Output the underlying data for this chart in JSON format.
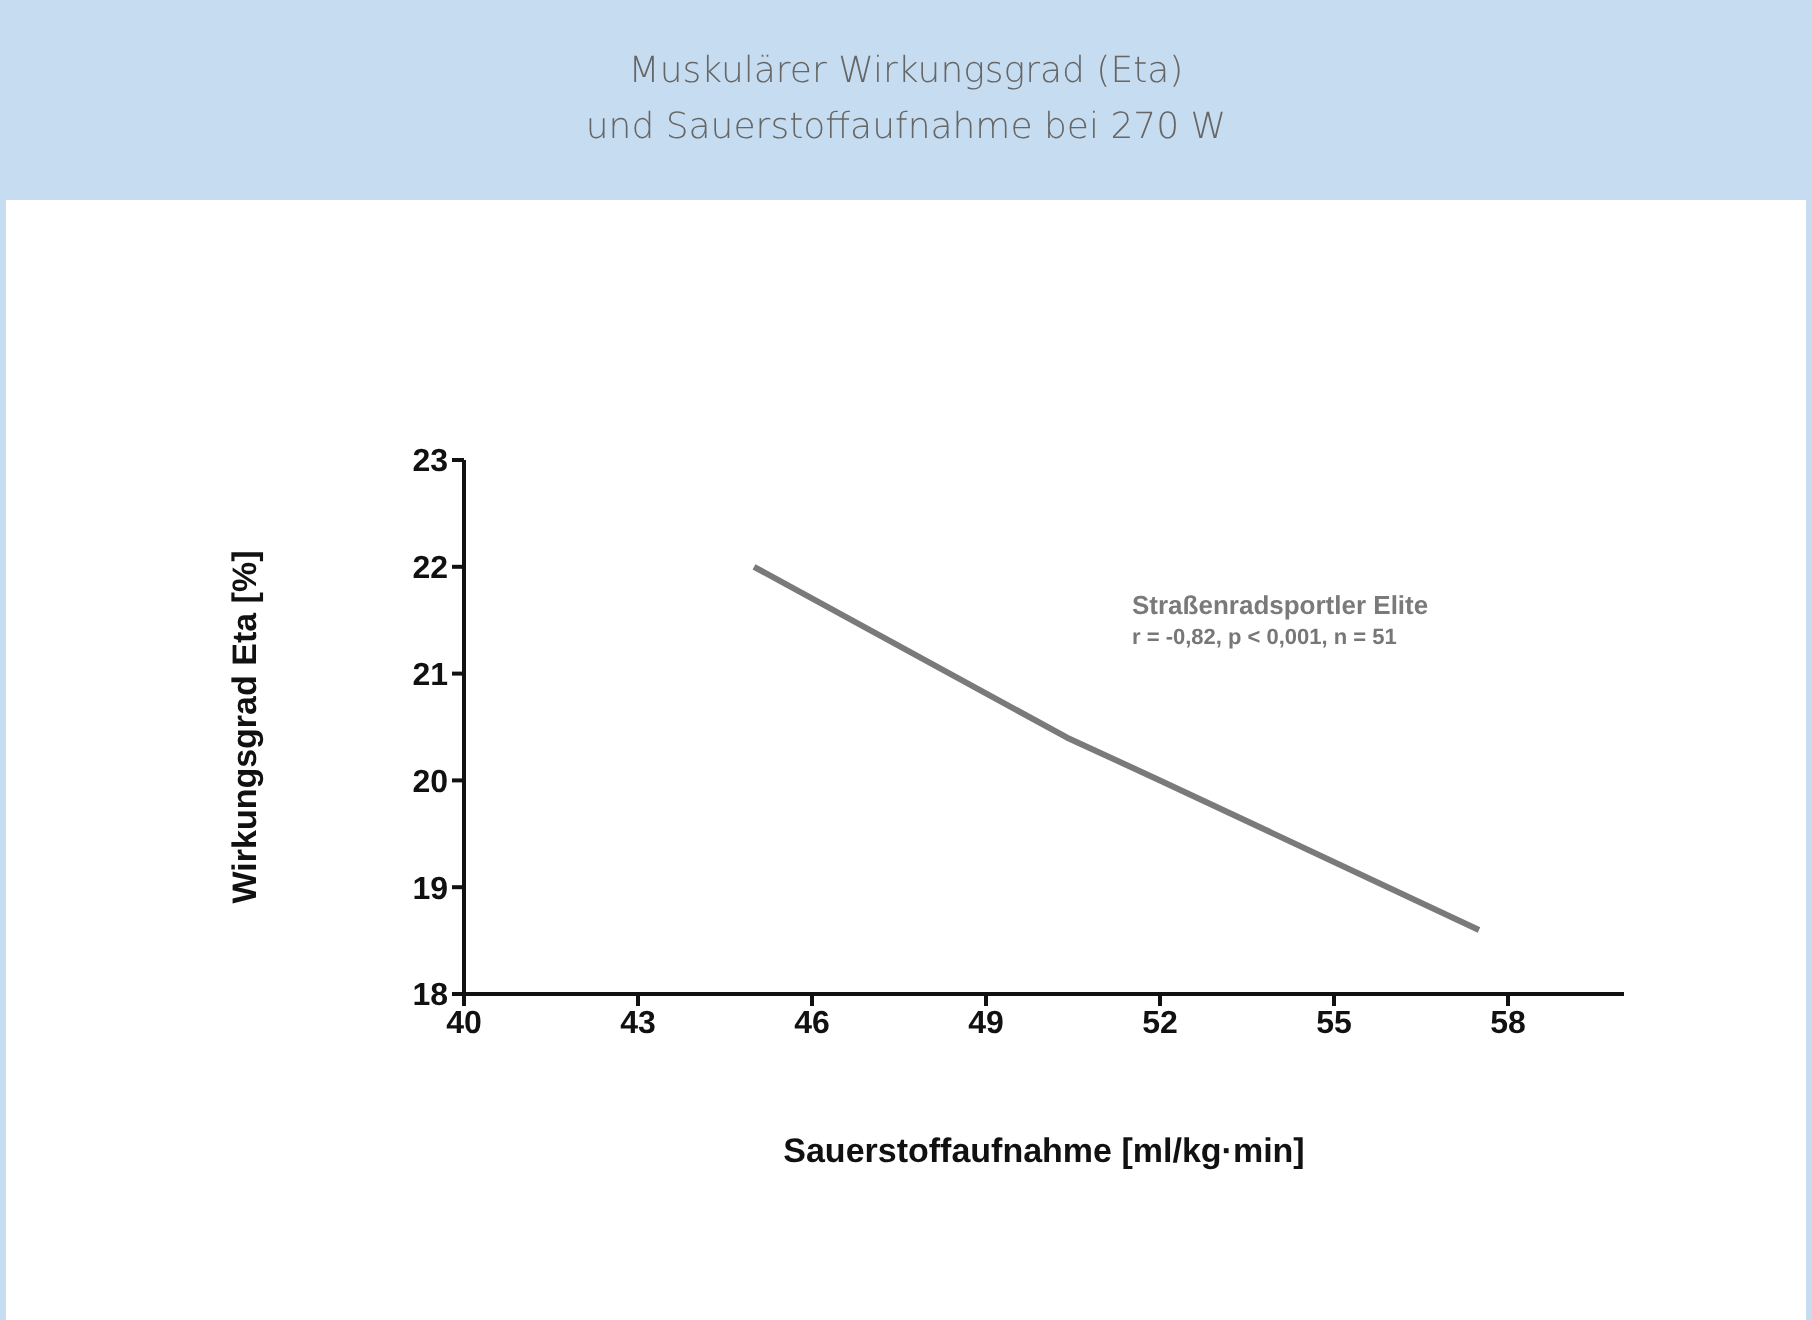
{
  "chart_data": {
    "type": "line",
    "title": "Muskulärer Wirkungsgrad (Eta)",
    "subtitle": "und Sauerstoffaufnahme bei 270 W",
    "xlabel": "Sauerstoffaufnahme [ml/kg·min]",
    "ylabel": "Wirkungsgrad Eta [%]",
    "x": [
      45,
      50.4,
      52,
      57.5
    ],
    "series": [
      {
        "name": "Straßenradsportler Elite",
        "color": "#7a7a7a",
        "values": [
          22,
          20.4,
          20,
          18.6
        ]
      }
    ],
    "annotations": [
      "r  = -0,82, p < 0,001, n = 51"
    ],
    "xlim": [
      40,
      60
    ],
    "xticks": [
      40,
      43,
      46,
      49,
      52,
      55,
      58
    ],
    "ylim": [
      18,
      23
    ],
    "yticks": [
      18,
      19,
      20,
      21,
      22,
      23
    ],
    "grid": false,
    "legend": false,
    "marker": "none",
    "line_style": "solid"
  }
}
